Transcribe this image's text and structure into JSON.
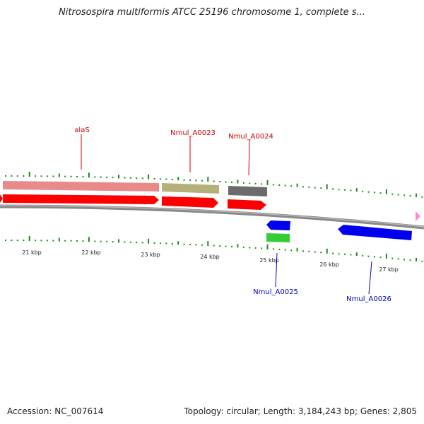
{
  "title": "Nitrosospira multiformis ATCC 25196 chromosome 1, complete s...",
  "footer": {
    "accession": "Accession: NC_007614",
    "summary": "Topology: circular; Length: 3,184,243 bp; Genes: 2,805"
  },
  "axis": {
    "ticks": [
      "21 kbp",
      "22 kbp",
      "23 kbp",
      "24 kbp",
      "25 kbp",
      "26 kbp",
      "27 kbp"
    ]
  },
  "genes": [
    {
      "label": "alaS",
      "color": "#cc0000"
    },
    {
      "label": "Nmul_A0023",
      "color": "#cc0000"
    },
    {
      "label": "Nmul_A0024",
      "color": "#cc0000"
    },
    {
      "label": "Nmul_A0025",
      "color": "#0000bb"
    },
    {
      "label": "Nmul_A0026",
      "color": "#0000bb"
    }
  ],
  "colors": {
    "forward_cds": "#ff0000",
    "reverse_cds": "#0000ee",
    "gene_forward_bar": "#e88a8a",
    "gene_olive": "#b5b07a",
    "gene_gray": "#6b6b6b",
    "gene_green": "#33cc33",
    "tick": "#1a8a1a",
    "backbone": "#888888",
    "edge_marker": "#ff88cc"
  }
}
